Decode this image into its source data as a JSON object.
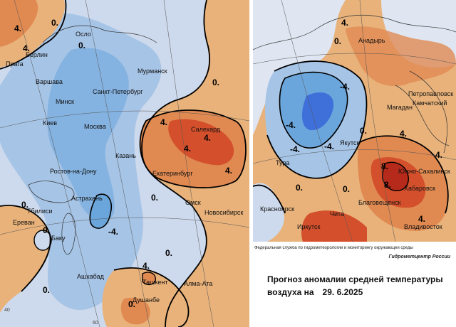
{
  "colors": {
    "cold_strong": "#3f6fd8",
    "cold_mid": "#6aa6dc",
    "cold_light": "#a6c4e6",
    "cold_faint": "#cdd9ec",
    "warm_faint": "#f0d9b8",
    "warm_light": "#e8b27a",
    "warm_mid": "#e08a52",
    "warm_strong": "#d4502c",
    "warm_extreme": "#b52a1a",
    "land_background": "#dfe6f1"
  },
  "west_map": {
    "cities": [
      "Осло",
      "Берлин",
      "Прага",
      "Варшава",
      "Мурманск",
      "Санкт-Петербург",
      "Минск",
      "Киев",
      "Москва",
      "Казань",
      "Салехард",
      "Екатеринбург",
      "Ростов-на-Дону",
      "Астрахань",
      "Омск",
      "Новосибирск",
      "Тбилиси",
      "Ереван",
      "Баку",
      "Ашхабад",
      "Ташкент",
      "Алма-Ата",
      "Душанбе"
    ],
    "isotherm_labels": [
      "4.",
      "0.",
      "4.",
      "0.",
      "0.",
      "4.",
      "4.",
      "4.",
      "4.",
      "0.",
      "0.",
      "0.",
      "0.",
      "0.",
      "-4.",
      "4.",
      "0."
    ],
    "graticule_labels": [
      "40",
      "60"
    ]
  },
  "east_map": {
    "cities": [
      "Анадырь",
      "Петропавловск",
      "Камчатский",
      "Магадан",
      "Якутск",
      "Тура",
      "Южно-Сахалинск",
      "Хабаровск",
      "Благовещенск",
      "Красноярск",
      "Иркутск",
      "Чита",
      "Владивосток"
    ],
    "isotherm_labels": [
      "4.",
      "0.",
      "-4.",
      "-4.",
      "-4.",
      "-4.",
      "0.",
      "4.",
      "0.",
      "8.",
      "8.",
      "4.",
      "0.",
      "4."
    ]
  },
  "info": {
    "agency": "Федеральная служба по гидрометеорологии и мониторингу окружающей среды",
    "agency_short": "Гидрометцентр России",
    "title_line1": "Прогноз аномалии средней температуры",
    "title_line2": "воздуха на",
    "date": "29. 6.2025"
  }
}
